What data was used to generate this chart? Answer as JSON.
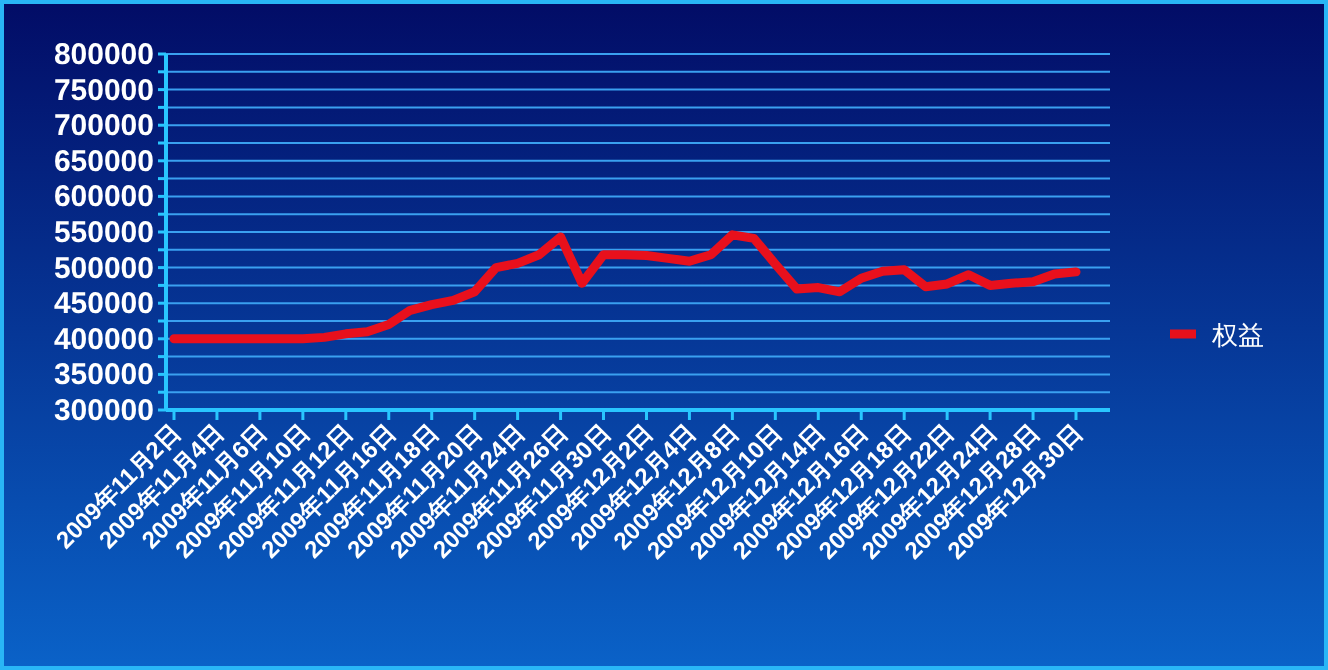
{
  "chart_data": {
    "type": "line",
    "categories": [
      "2009年11月2日",
      null,
      "2009年11月4日",
      null,
      "2009年11月6日",
      null,
      "2009年11月10日",
      null,
      "2009年11月12日",
      null,
      "2009年11月16日",
      null,
      "2009年11月18日",
      null,
      "2009年11月20日",
      null,
      "2009年11月24日",
      null,
      "2009年11月26日",
      null,
      "2009年11月30日",
      null,
      "2009年12月2日",
      null,
      "2009年12月4日",
      null,
      "2009年12月8日",
      null,
      "2009年12月10日",
      null,
      "2009年12月14日",
      null,
      "2009年12月16日",
      null,
      "2009年12月18日",
      null,
      "2009年12月22日",
      null,
      "2009年12月24日",
      null,
      "2009年12月28日",
      null,
      "2009年12月30日"
    ],
    "series": [
      {
        "name": "权益",
        "color": "#e8101c",
        "values": [
          400000,
          400000,
          400000,
          400000,
          400000,
          400000,
          400000,
          402000,
          407000,
          410000,
          420000,
          440000,
          448000,
          454000,
          466000,
          500000,
          506000,
          518000,
          543000,
          478000,
          518000,
          518000,
          517000,
          513000,
          509000,
          518000,
          546000,
          541000,
          505000,
          470000,
          472000,
          466000,
          485000,
          495000,
          497000,
          473000,
          477000,
          490000,
          475000,
          478000,
          480000,
          491000,
          494000
        ]
      }
    ],
    "ylim": [
      300000,
      800000
    ],
    "yticks": [
      300000,
      {
        "value": 325000,
        "label": null
      },
      350000,
      {
        "value": 375000,
        "label": null
      },
      400000,
      {
        "value": 425000,
        "label": null
      },
      450000,
      {
        "value": 475000,
        "label": null
      },
      500000,
      {
        "value": 525000,
        "label": null
      },
      550000,
      {
        "value": 575000,
        "label": null
      },
      600000,
      {
        "value": 625000,
        "label": null
      },
      650000,
      {
        "value": 675000,
        "label": null
      },
      700000,
      {
        "value": 725000,
        "label": null
      },
      750000,
      {
        "value": 775000,
        "label": null
      },
      800000
    ],
    "grid": "y",
    "legend": "right",
    "marker": "none",
    "line_style": "solid"
  }
}
